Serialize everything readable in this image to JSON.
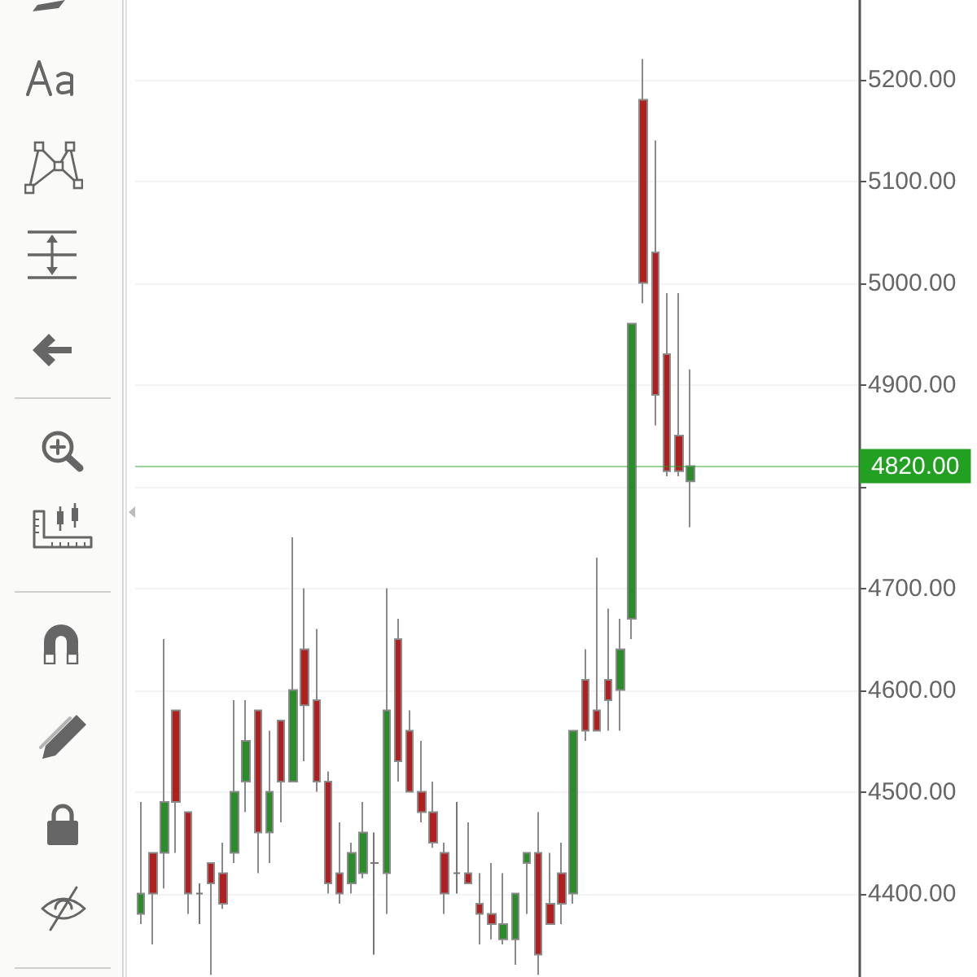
{
  "chart_data": {
    "type": "candlestick",
    "categories": [
      null,
      null,
      null,
      null,
      null,
      null,
      null,
      null,
      null,
      null,
      null,
      null,
      null,
      null,
      null,
      null,
      null,
      null,
      null,
      null,
      null,
      null,
      null,
      null,
      null,
      null,
      null,
      null,
      null,
      null,
      null,
      null,
      null,
      null,
      null,
      null,
      null,
      null,
      null,
      null,
      null,
      null,
      null,
      null,
      null,
      null,
      null,
      null,
      null,
      null,
      null,
      null,
      null,
      null,
      null,
      null,
      null,
      null,
      null,
      null,
      null,
      null
    ],
    "ohlc": [
      [
        4380,
        4490,
        4370,
        4400
      ],
      [
        4440,
        4440,
        4350,
        4400
      ],
      [
        4440,
        4650,
        4405,
        4490
      ],
      [
        4580,
        4580,
        4440,
        4490
      ],
      [
        4480,
        4480,
        4380,
        4400
      ],
      [
        4400,
        4410,
        4370,
        4400
      ],
      [
        4430,
        4430,
        4320,
        4410
      ],
      [
        4420,
        4450,
        4385,
        4390
      ],
      [
        4440,
        4590,
        4430,
        4500
      ],
      [
        4510,
        4590,
        4480,
        4550
      ],
      [
        4580,
        4580,
        4420,
        4460
      ],
      [
        4460,
        4560,
        4430,
        4500
      ],
      [
        4570,
        4570,
        4470,
        4510
      ],
      [
        4510,
        4750,
        4510,
        4600
      ],
      [
        4640,
        4700,
        4530,
        4585
      ],
      [
        4590,
        4660,
        4500,
        4510
      ],
      [
        4510,
        4520,
        4400,
        4410
      ],
      [
        4420,
        4470,
        4390,
        4400
      ],
      [
        4410,
        4450,
        4400,
        4440
      ],
      [
        4420,
        4490,
        4415,
        4460
      ],
      [
        4430,
        4460,
        4340,
        4430
      ],
      [
        4420,
        4700,
        4380,
        4580
      ],
      [
        4650,
        4670,
        4510,
        4530
      ],
      [
        4560,
        4580,
        4500,
        4500
      ],
      [
        4500,
        4550,
        4470,
        4480
      ],
      [
        4480,
        4510,
        4445,
        4450
      ],
      [
        4440,
        4450,
        4380,
        4400
      ],
      [
        4420,
        4490,
        4400,
        4420
      ],
      [
        4420,
        4470,
        4410,
        4410
      ],
      [
        4390,
        4420,
        4350,
        4380
      ],
      [
        4380,
        4430,
        4355,
        4370
      ],
      [
        4355,
        4420,
        4350,
        4370
      ],
      [
        4355,
        4400,
        4330,
        4400
      ],
      [
        4430,
        4440,
        4380,
        4440
      ],
      [
        4440,
        4480,
        4320,
        4340
      ],
      [
        4390,
        4440,
        4370,
        4370
      ],
      [
        4420,
        4450,
        4370,
        4390
      ],
      [
        4400,
        4560,
        4390,
        4560
      ],
      [
        4610,
        4640,
        4550,
        4560
      ],
      [
        4580,
        4730,
        4560,
        4560
      ],
      [
        4610,
        4680,
        4560,
        4590
      ],
      [
        4600,
        4670,
        4560,
        4640
      ],
      [
        4670,
        4960,
        4650,
        4960
      ],
      [
        5180,
        5220,
        4980,
        5000
      ],
      [
        5030,
        5140,
        4860,
        4890
      ],
      [
        4930,
        4990,
        4810,
        4815
      ],
      [
        4850,
        4990,
        4810,
        4815
      ],
      [
        4805,
        4915,
        4760,
        4820
      ],
      null,
      null,
      null,
      null,
      null,
      null,
      null,
      null,
      null,
      null,
      null,
      null,
      null,
      null
    ],
    "colors": [
      "#2c8c2c",
      "#b02020",
      "#2c8c2c",
      "#b02020",
      "#b02020",
      "#777777",
      "#b02020",
      "#b02020",
      "#2c8c2c",
      "#2c8c2c",
      "#b02020",
      "#2c8c2c",
      "#b02020",
      "#2c8c2c",
      "#b02020",
      "#b02020",
      "#b02020",
      "#b02020",
      "#2c8c2c",
      "#2c8c2c",
      "#777777",
      "#2c8c2c",
      "#b02020",
      "#b02020",
      "#b02020",
      "#b02020",
      "#b02020",
      "#777777",
      "#b02020",
      "#b02020",
      "#b02020",
      "#2c8c2c",
      "#2c8c2c",
      "#2c8c2c",
      "#b02020",
      "#b02020",
      "#b02020",
      "#2c8c2c",
      "#b02020",
      "#b02020",
      "#b02020",
      "#2c8c2c",
      "#2c8c2c",
      "#b02020",
      "#b02020",
      "#b02020",
      "#b02020",
      "#2c8c2c",
      null,
      null,
      null,
      null,
      null,
      null,
      null,
      null,
      null,
      null,
      null,
      null,
      null,
      null
    ],
    "ylim": [
      4318,
      5278
    ],
    "yticks": [
      {
        "value": 4400,
        "label": "4400.00"
      },
      {
        "value": 4500,
        "label": "4500.00"
      },
      {
        "value": 4600,
        "label": "4600.00"
      },
      {
        "value": 4700,
        "label": "4700.00"
      },
      {
        "value": 4800,
        "label": null
      },
      {
        "value": 4900,
        "label": "4900.00"
      },
      {
        "value": 5000,
        "label": "5000.00"
      },
      {
        "value": 5100,
        "label": "5100.00"
      },
      {
        "value": 5200,
        "label": "5200.00"
      }
    ],
    "tick_labels": "y",
    "grid": "y",
    "ref_lines": [
      {
        "axis": "y",
        "value": 4820,
        "label": "4820.00",
        "color": "#22a022"
      }
    ]
  }
}
